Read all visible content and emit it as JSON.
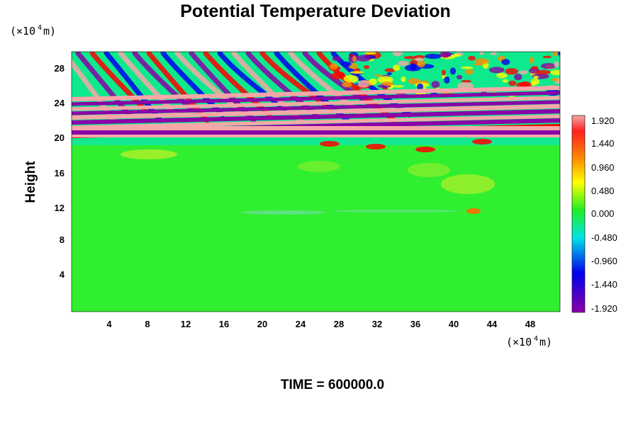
{
  "chart_data": {
    "type": "heatmap",
    "title": "Potential Temperature Deviation",
    "ylabel": "Height",
    "y_unit": {
      "prefix": "(×10",
      "exponent": "4",
      "suffix": " m)"
    },
    "x_unit": {
      "prefix": "(×10",
      "exponent": "4",
      "suffix": " m)"
    },
    "xlim": [
      0,
      51
    ],
    "ylim": [
      0,
      30
    ],
    "x_ticks": [
      "4",
      "8",
      "12",
      "16",
      "20",
      "24",
      "28",
      "32",
      "36",
      "40",
      "44",
      "48"
    ],
    "y_ticks": [
      "4",
      "8",
      "12",
      "16",
      "20",
      "24",
      "28"
    ],
    "x_tick_values": [
      4,
      8,
      12,
      16,
      20,
      24,
      28,
      32,
      36,
      40,
      44,
      48
    ],
    "y_tick_values": [
      4,
      8,
      12,
      16,
      20,
      24,
      28
    ],
    "colorbar": {
      "range": [
        -2.16,
        2.16
      ],
      "tick_labels": [
        "1.920",
        "1.440",
        "0.960",
        "0.480",
        "0.000",
        "-0.480",
        "-0.960",
        "-1.440",
        "-1.920"
      ],
      "tick_values": [
        1.92,
        1.44,
        0.96,
        0.48,
        0.0,
        -0.48,
        -0.96,
        -1.44,
        -1.92
      ]
    },
    "field_description": {
      "lower_region": {
        "y_range": [
          0,
          19
        ],
        "value": 0.0
      },
      "upper_region": {
        "y_range": [
          19,
          30
        ],
        "value_range": [
          -1.92,
          1.92
        ]
      }
    }
  },
  "footer": {
    "time_label": "TIME = 600000.0"
  },
  "colors": {
    "pink": "#f7a7a7",
    "red": "#ff0000",
    "orange": "#ff8c00",
    "yellow": "#ffff00",
    "green": "#22ee22",
    "cyan": "#00e5e5",
    "blue": "#0000ee",
    "purple": "#8b00a8"
  }
}
